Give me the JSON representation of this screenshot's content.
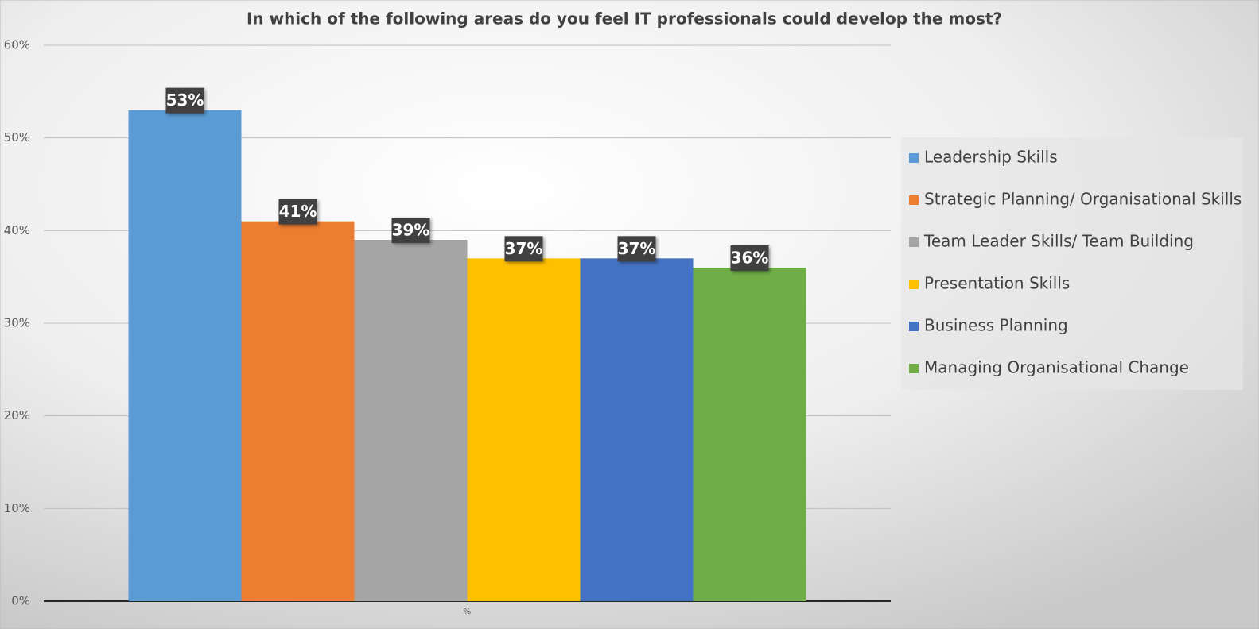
{
  "chart_data": {
    "type": "bar",
    "title": "In which of the following areas do you feel IT professionals could develop the most?",
    "categories": [
      "%"
    ],
    "series": [
      {
        "name": "Leadership Skills",
        "color": "#5b9bd5",
        "values": [
          53
        ],
        "value_labels": [
          "53%"
        ]
      },
      {
        "name": "Strategic Planning/ Organisational Skills",
        "color": "#ed7d31",
        "values": [
          41
        ],
        "value_labels": [
          "41%"
        ]
      },
      {
        "name": "Team Leader Skills/ Team Building",
        "color": "#a5a5a5",
        "values": [
          39
        ],
        "value_labels": [
          "39%"
        ]
      },
      {
        "name": "Presentation Skills",
        "color": "#ffc000",
        "values": [
          37
        ],
        "value_labels": [
          "37%"
        ]
      },
      {
        "name": "Business Planning",
        "color": "#4472c4",
        "values": [
          37
        ],
        "value_labels": [
          "37%"
        ]
      },
      {
        "name": "Managing Organisational Change",
        "color": "#70ad47",
        "values": [
          36
        ],
        "value_labels": [
          "36%"
        ]
      }
    ],
    "ylim": [
      0,
      60
    ],
    "yticks": [
      {
        "value": 0,
        "label": "0%"
      },
      {
        "value": 10,
        "label": "10%"
      },
      {
        "value": 20,
        "label": "20%"
      },
      {
        "value": 30,
        "label": "30%"
      },
      {
        "value": 40,
        "label": "40%"
      },
      {
        "value": 50,
        "label": "50%"
      },
      {
        "value": 60,
        "label": "60%"
      }
    ],
    "grid": true,
    "legend": "right"
  }
}
